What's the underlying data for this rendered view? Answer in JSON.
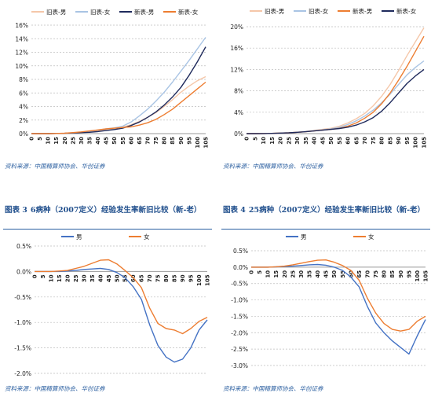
{
  "colors": {
    "old_male": "#f5c7a9",
    "old_female": "#a9c4e4",
    "new_male": "#1f2a5c",
    "new_female": "#ed7d31",
    "male": "#4472c4",
    "female": "#ed7d31",
    "accent": "#2b5fa0"
  },
  "sources": {
    "top_left": "资料来源：中国精算师协会、华创证券",
    "top_right": "资料来源：中国精算师协会、华创证券",
    "bottom_left": "资料来源：中国精算师协会、华创证券",
    "bottom_right": "资料来源：中国精算师协会、华创证券"
  },
  "figure_titles": {
    "fig3": {
      "label": "图表 3",
      "text": "6病种（2007定义）经验发生率新旧比较（新-老）"
    },
    "fig4": {
      "label": "图表 4",
      "text": "25病种（2007定义）经验发生率新旧比较（新-老）"
    }
  },
  "chart_data": [
    {
      "type": "line",
      "ylim": [
        0,
        16
      ],
      "yticks": [
        0,
        2,
        4,
        6,
        8,
        10,
        12,
        14,
        16
      ],
      "ytick_suffix": "%",
      "x": [
        0,
        5,
        10,
        15,
        20,
        25,
        30,
        35,
        40,
        45,
        50,
        55,
        60,
        65,
        70,
        75,
        80,
        85,
        90,
        95,
        100,
        105
      ],
      "legend": "top",
      "grid": true,
      "series": [
        {
          "name": "旧表-男",
          "color_key": "new_male",
          "color": "#f5c7a9",
          "values": [
            0.0,
            0.0,
            0.0,
            0.02,
            0.05,
            0.1,
            0.15,
            0.25,
            0.35,
            0.5,
            0.7,
            0.95,
            1.3,
            1.8,
            2.4,
            3.1,
            4.0,
            5.0,
            6.1,
            7.0,
            7.8,
            8.4
          ]
        },
        {
          "name": "旧表-女",
          "color": "#a9c4e4",
          "values": [
            0.0,
            0.0,
            0.0,
            0.02,
            0.05,
            0.12,
            0.2,
            0.35,
            0.5,
            0.7,
            0.85,
            1.1,
            1.7,
            2.6,
            3.6,
            4.8,
            6.1,
            7.6,
            9.2,
            10.8,
            12.5,
            14.2
          ]
        },
        {
          "name": "新表-男",
          "color": "#1f2a5c",
          "values": [
            0.0,
            0.0,
            0.0,
            0.02,
            0.05,
            0.1,
            0.15,
            0.2,
            0.3,
            0.45,
            0.6,
            0.8,
            1.2,
            1.7,
            2.4,
            3.2,
            4.2,
            5.4,
            6.8,
            8.6,
            10.6,
            12.8
          ]
        },
        {
          "name": "新表-女",
          "color": "#ed7d31",
          "values": [
            0.0,
            0.0,
            0.0,
            0.02,
            0.06,
            0.15,
            0.25,
            0.4,
            0.55,
            0.7,
            0.8,
            0.9,
            1.0,
            1.25,
            1.6,
            2.1,
            2.8,
            3.6,
            4.6,
            5.6,
            6.6,
            7.6
          ]
        }
      ]
    },
    {
      "type": "line",
      "ylim": [
        0,
        20
      ],
      "yticks": [
        0,
        4,
        8,
        12,
        16,
        20
      ],
      "ytick_suffix": "%",
      "x": [
        0,
        5,
        10,
        15,
        20,
        25,
        30,
        35,
        40,
        45,
        50,
        55,
        60,
        65,
        70,
        75,
        80,
        85,
        90,
        95,
        100,
        105
      ],
      "legend": "top",
      "grid": true,
      "series": [
        {
          "name": "旧表-男",
          "color": "#f5c7a9",
          "values": [
            0.0,
            0.0,
            0.02,
            0.05,
            0.1,
            0.15,
            0.25,
            0.4,
            0.6,
            0.8,
            1.0,
            1.4,
            2.0,
            2.8,
            3.8,
            5.2,
            7.0,
            9.2,
            11.8,
            14.6,
            17.2,
            19.8
          ]
        },
        {
          "name": "旧表-女",
          "color": "#a9c4e4",
          "values": [
            0.0,
            0.0,
            0.02,
            0.05,
            0.1,
            0.15,
            0.25,
            0.4,
            0.55,
            0.7,
            0.9,
            1.2,
            1.7,
            2.4,
            3.3,
            4.4,
            5.8,
            7.4,
            9.2,
            11.0,
            12.4,
            13.6
          ]
        },
        {
          "name": "新表-男",
          "color": "#ed7d31",
          "values": [
            0.0,
            0.0,
            0.02,
            0.05,
            0.1,
            0.15,
            0.25,
            0.35,
            0.5,
            0.65,
            0.8,
            1.0,
            1.4,
            2.0,
            2.9,
            4.0,
            5.6,
            7.6,
            10.0,
            12.6,
            15.4,
            18.2
          ]
        },
        {
          "name": "新表-女",
          "color": "#1f2a5c",
          "values": [
            0.0,
            0.0,
            0.02,
            0.05,
            0.1,
            0.15,
            0.25,
            0.35,
            0.5,
            0.65,
            0.8,
            0.95,
            1.2,
            1.6,
            2.2,
            3.0,
            4.2,
            5.8,
            7.6,
            9.4,
            10.8,
            12.0
          ]
        }
      ]
    },
    {
      "type": "line",
      "ylim": [
        -2.0,
        0.5
      ],
      "yticks": [
        0.5,
        0.0,
        -0.5,
        -1.0,
        -1.5,
        -2.0
      ],
      "ytick_format": "1dp",
      "ytick_suffix": "%",
      "x": [
        0,
        5,
        10,
        15,
        20,
        25,
        30,
        35,
        40,
        45,
        50,
        55,
        60,
        65,
        70,
        75,
        80,
        85,
        90,
        95,
        100,
        105
      ],
      "legend": "top",
      "grid": true,
      "series": [
        {
          "name": "男",
          "color": "#4472c4",
          "values": [
            0.0,
            0.0,
            0.0,
            0.0,
            0.01,
            0.02,
            0.04,
            0.05,
            0.06,
            0.04,
            -0.02,
            -0.12,
            -0.3,
            -0.55,
            -1.05,
            -1.45,
            -1.68,
            -1.78,
            -1.72,
            -1.5,
            -1.15,
            -0.95
          ]
        },
        {
          "name": "女",
          "color": "#ed7d31",
          "values": [
            0.0,
            0.0,
            0.0,
            0.01,
            0.02,
            0.06,
            0.1,
            0.16,
            0.22,
            0.23,
            0.15,
            0.02,
            -0.12,
            -0.32,
            -0.72,
            -1.02,
            -1.12,
            -1.15,
            -1.22,
            -1.12,
            -0.98,
            -0.9
          ]
        }
      ]
    },
    {
      "type": "line",
      "ylim": [
        -3.0,
        0.5
      ],
      "yticks": [
        0.5,
        0.0,
        -0.5,
        -1.0,
        -1.5,
        -2.0,
        -2.5,
        -3.0
      ],
      "ytick_format": "1dp",
      "ytick_suffix": "%",
      "x": [
        0,
        5,
        10,
        15,
        20,
        25,
        30,
        35,
        40,
        45,
        50,
        55,
        60,
        65,
        70,
        75,
        80,
        85,
        90,
        95,
        100,
        105
      ],
      "legend": "top",
      "grid": true,
      "series": [
        {
          "name": "男",
          "color": "#4472c4",
          "values": [
            0.0,
            0.0,
            0.0,
            0.01,
            0.02,
            0.03,
            0.05,
            0.07,
            0.08,
            0.06,
            0.0,
            -0.1,
            -0.3,
            -0.6,
            -1.2,
            -1.7,
            -2.0,
            -2.25,
            -2.45,
            -2.65,
            -2.1,
            -1.6
          ]
        },
        {
          "name": "女",
          "color": "#ed7d31",
          "values": [
            0.0,
            0.0,
            0.0,
            0.01,
            0.03,
            0.07,
            0.12,
            0.17,
            0.21,
            0.22,
            0.15,
            0.05,
            -0.1,
            -0.4,
            -0.95,
            -1.4,
            -1.72,
            -1.9,
            -1.95,
            -1.9,
            -1.65,
            -1.5
          ]
        }
      ]
    }
  ]
}
